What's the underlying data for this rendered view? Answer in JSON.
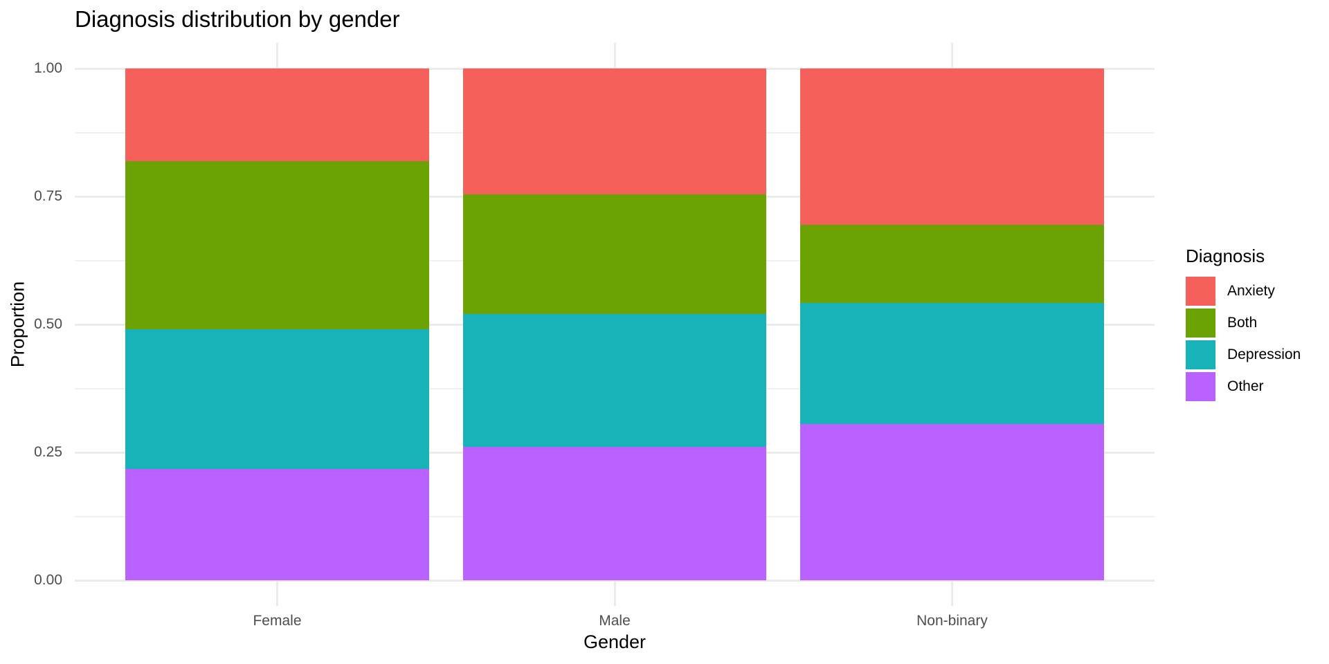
{
  "chart_data": {
    "type": "bar",
    "stacked": true,
    "position": "fill",
    "title": "Diagnosis distribution by gender",
    "xlabel": "Gender",
    "ylabel": "Proportion",
    "ylim": [
      0,
      1
    ],
    "yticks": [
      "0.00",
      "0.25",
      "0.50",
      "0.75",
      "1.00"
    ],
    "grid": true,
    "legend_position": "right",
    "legend_title": "Diagnosis",
    "categories": [
      "Female",
      "Male",
      "Non-binary"
    ],
    "series": [
      {
        "name": "Anxiety",
        "color": "#F8766D",
        "values": [
          0.181,
          0.246,
          0.305
        ]
      },
      {
        "name": "Both",
        "color": "#7CAE00",
        "values": [
          0.328,
          0.234,
          0.153
        ]
      },
      {
        "name": "Depression",
        "color": "#00BFC4",
        "values": [
          0.273,
          0.259,
          0.237
        ]
      },
      {
        "name": "Other",
        "color": "#C77CFF",
        "values": [
          0.218,
          0.261,
          0.305
        ]
      }
    ]
  },
  "colors": {
    "Anxiety": "#F5605B",
    "Both": "#6BA304",
    "Depression": "#18B3B8",
    "Other": "#B962FF"
  }
}
